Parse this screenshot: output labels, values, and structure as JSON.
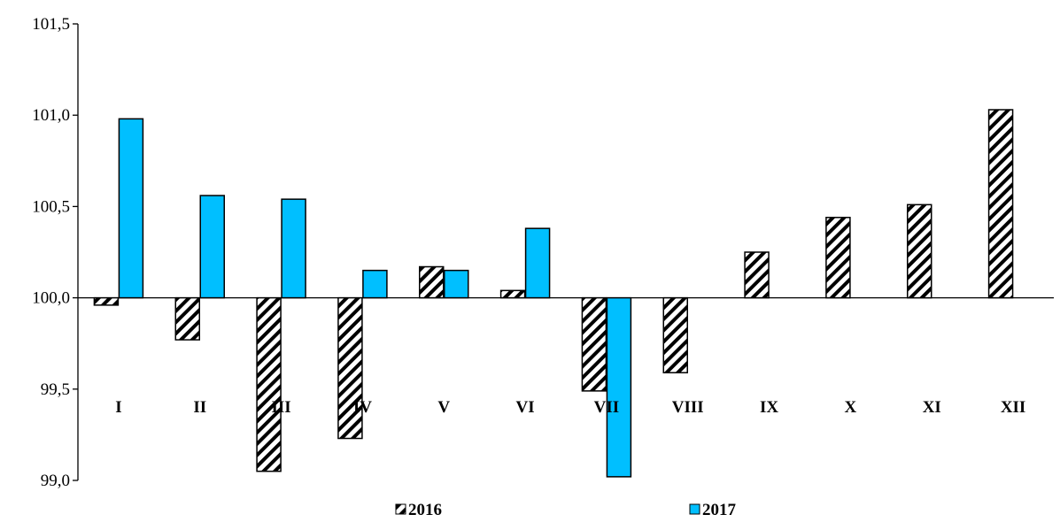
{
  "chart_data": {
    "type": "bar",
    "categories": [
      "I",
      "II",
      "III",
      "IV",
      "V",
      "VI",
      "VII",
      "VIII",
      "IX",
      "X",
      "XI",
      "XII"
    ],
    "baseline": 100.0,
    "ylim": [
      99.0,
      101.5
    ],
    "yticks": [
      99.0,
      99.5,
      100.0,
      100.5,
      101.0,
      101.5
    ],
    "ytick_labels": [
      "99,0",
      "99,5",
      "100,0",
      "100,5",
      "101,0",
      "101,5"
    ],
    "grid": false,
    "legend_position": "bottom",
    "series": [
      {
        "name": "2016",
        "fill": "hatch",
        "color": "#000000",
        "values": [
          99.96,
          99.77,
          99.05,
          99.23,
          100.17,
          100.04,
          99.49,
          99.59,
          100.25,
          100.44,
          100.51,
          101.03
        ]
      },
      {
        "name": "2017",
        "fill": "solid",
        "color": "#00BFFF",
        "values": [
          100.98,
          100.56,
          100.54,
          100.15,
          100.15,
          100.38,
          99.02,
          null,
          null,
          null,
          null,
          null
        ]
      }
    ]
  }
}
